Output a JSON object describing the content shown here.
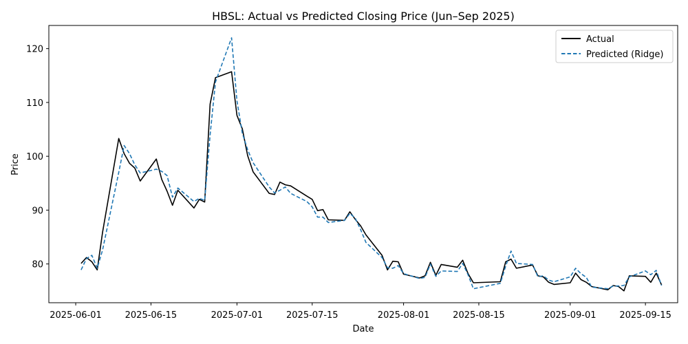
{
  "chart_data": {
    "type": "line",
    "title": "HBSL: Actual vs Predicted Closing Price (Jun–Sep 2025)",
    "xlabel": "Date",
    "ylabel": "Price",
    "xlim": [
      "2025-05-27",
      "2025-09-21"
    ],
    "ylim": [
      72.8,
      124.3
    ],
    "x_ticks": [
      "2025-06-01",
      "2025-06-15",
      "2025-07-01",
      "2025-07-15",
      "2025-08-01",
      "2025-08-15",
      "2025-09-01",
      "2025-09-15"
    ],
    "y_ticks": [
      80,
      90,
      100,
      110,
      120
    ],
    "grid": false,
    "legend_position": "top-right",
    "series": [
      {
        "name": "Actual",
        "color": "#000000",
        "style": "solid",
        "points": [
          [
            "2025-06-02",
            80.1
          ],
          [
            "2025-06-03",
            81.2
          ],
          [
            "2025-06-04",
            80.4
          ],
          [
            "2025-06-05",
            78.9
          ],
          [
            "2025-06-06",
            85.9
          ],
          [
            "2025-06-09",
            103.3
          ],
          [
            "2025-06-10",
            100.5
          ],
          [
            "2025-06-11",
            98.7
          ],
          [
            "2025-06-12",
            97.8
          ],
          [
            "2025-06-13",
            95.4
          ],
          [
            "2025-06-16",
            99.5
          ],
          [
            "2025-06-17",
            95.7
          ],
          [
            "2025-06-18",
            93.5
          ],
          [
            "2025-06-19",
            90.9
          ],
          [
            "2025-06-20",
            93.7
          ],
          [
            "2025-06-23",
            90.4
          ],
          [
            "2025-06-24",
            92.0
          ],
          [
            "2025-06-25",
            91.5
          ],
          [
            "2025-06-26",
            109.7
          ],
          [
            "2025-06-27",
            114.6
          ],
          [
            "2025-06-30",
            115.7
          ],
          [
            "2025-07-01",
            107.6
          ],
          [
            "2025-07-02",
            105.1
          ],
          [
            "2025-07-03",
            100.1
          ],
          [
            "2025-07-04",
            97.1
          ],
          [
            "2025-07-07",
            93.1
          ],
          [
            "2025-07-08",
            92.9
          ],
          [
            "2025-07-09",
            95.2
          ],
          [
            "2025-07-10",
            94.7
          ],
          [
            "2025-07-11",
            94.5
          ],
          [
            "2025-07-14",
            92.6
          ],
          [
            "2025-07-15",
            92.0
          ],
          [
            "2025-07-16",
            89.9
          ],
          [
            "2025-07-17",
            90.1
          ],
          [
            "2025-07-18",
            88.2
          ],
          [
            "2025-07-21",
            88.1
          ],
          [
            "2025-07-22",
            89.7
          ],
          [
            "2025-07-23",
            88.3
          ],
          [
            "2025-07-24",
            87.1
          ],
          [
            "2025-07-25",
            85.4
          ],
          [
            "2025-07-28",
            81.6
          ],
          [
            "2025-07-29",
            78.9
          ],
          [
            "2025-07-30",
            80.5
          ],
          [
            "2025-07-31",
            80.4
          ],
          [
            "2025-08-01",
            78.1
          ],
          [
            "2025-08-04",
            77.4
          ],
          [
            "2025-08-05",
            77.8
          ],
          [
            "2025-08-06",
            80.3
          ],
          [
            "2025-08-07",
            77.9
          ],
          [
            "2025-08-08",
            79.9
          ],
          [
            "2025-08-11",
            79.4
          ],
          [
            "2025-08-12",
            80.7
          ],
          [
            "2025-08-13",
            78.2
          ],
          [
            "2025-08-14",
            76.5
          ],
          [
            "2025-08-19",
            76.7
          ],
          [
            "2025-08-20",
            80.4
          ],
          [
            "2025-08-21",
            80.9
          ],
          [
            "2025-08-22",
            79.2
          ],
          [
            "2025-08-25",
            79.8
          ],
          [
            "2025-08-26",
            77.8
          ],
          [
            "2025-08-27",
            77.6
          ],
          [
            "2025-08-28",
            76.6
          ],
          [
            "2025-08-29",
            76.2
          ],
          [
            "2025-09-01",
            76.5
          ],
          [
            "2025-09-02",
            78.3
          ],
          [
            "2025-09-03",
            77.1
          ],
          [
            "2025-09-04",
            76.6
          ],
          [
            "2025-09-05",
            75.8
          ],
          [
            "2025-09-08",
            75.2
          ],
          [
            "2025-09-09",
            76.0
          ],
          [
            "2025-09-10",
            75.8
          ],
          [
            "2025-09-11",
            75.0
          ],
          [
            "2025-09-12",
            77.8
          ],
          [
            "2025-09-15",
            77.7
          ],
          [
            "2025-09-16",
            76.6
          ],
          [
            "2025-09-17",
            78.3
          ],
          [
            "2025-09-18",
            76.1
          ]
        ]
      },
      {
        "name": "Predicted (Ridge)",
        "color": "#1f77b4",
        "style": "dashed",
        "points": [
          [
            "2025-06-02",
            78.9
          ],
          [
            "2025-06-03",
            81.0
          ],
          [
            "2025-06-04",
            81.6
          ],
          [
            "2025-06-05",
            79.2
          ],
          [
            "2025-06-06",
            82.6
          ],
          [
            "2025-06-09",
            97.0
          ],
          [
            "2025-06-10",
            102.0
          ],
          [
            "2025-06-11",
            100.5
          ],
          [
            "2025-06-12",
            98.4
          ],
          [
            "2025-06-13",
            96.9
          ],
          [
            "2025-06-16",
            97.6
          ],
          [
            "2025-06-17",
            97.2
          ],
          [
            "2025-06-18",
            96.4
          ],
          [
            "2025-06-19",
            92.4
          ],
          [
            "2025-06-20",
            94.1
          ],
          [
            "2025-06-23",
            91.6
          ],
          [
            "2025-06-24",
            92.2
          ],
          [
            "2025-06-25",
            91.8
          ],
          [
            "2025-06-26",
            104.0
          ],
          [
            "2025-06-27",
            113.8
          ],
          [
            "2025-06-30",
            122.0
          ],
          [
            "2025-07-01",
            110.3
          ],
          [
            "2025-07-02",
            104.3
          ],
          [
            "2025-07-03",
            101.2
          ],
          [
            "2025-07-04",
            98.8
          ],
          [
            "2025-07-07",
            94.3
          ],
          [
            "2025-07-08",
            93.2
          ],
          [
            "2025-07-09",
            93.7
          ],
          [
            "2025-07-10",
            94.3
          ],
          [
            "2025-07-11",
            93.1
          ],
          [
            "2025-07-14",
            91.6
          ],
          [
            "2025-07-15",
            90.6
          ],
          [
            "2025-07-16",
            88.7
          ],
          [
            "2025-07-17",
            88.7
          ],
          [
            "2025-07-18",
            87.7
          ],
          [
            "2025-07-21",
            88.1
          ],
          [
            "2025-07-22",
            89.4
          ],
          [
            "2025-07-23",
            88.5
          ],
          [
            "2025-07-24",
            86.4
          ],
          [
            "2025-07-25",
            84.0
          ],
          [
            "2025-07-28",
            81.2
          ],
          [
            "2025-07-29",
            79.3
          ],
          [
            "2025-07-30",
            79.2
          ],
          [
            "2025-07-31",
            79.7
          ],
          [
            "2025-08-01",
            78.2
          ],
          [
            "2025-08-04",
            77.3
          ],
          [
            "2025-08-05",
            77.5
          ],
          [
            "2025-08-06",
            80.0
          ],
          [
            "2025-08-07",
            77.7
          ],
          [
            "2025-08-08",
            78.7
          ],
          [
            "2025-08-11",
            78.6
          ],
          [
            "2025-08-12",
            80.1
          ],
          [
            "2025-08-13",
            78.0
          ],
          [
            "2025-08-14",
            75.4
          ],
          [
            "2025-08-19",
            76.4
          ],
          [
            "2025-08-20",
            79.6
          ],
          [
            "2025-08-21",
            82.4
          ],
          [
            "2025-08-22",
            80.1
          ],
          [
            "2025-08-25",
            79.9
          ],
          [
            "2025-08-26",
            77.6
          ],
          [
            "2025-08-27",
            77.8
          ],
          [
            "2025-08-28",
            77.0
          ],
          [
            "2025-08-29",
            76.7
          ],
          [
            "2025-09-01",
            77.6
          ],
          [
            "2025-09-02",
            79.2
          ],
          [
            "2025-09-03",
            78.2
          ],
          [
            "2025-09-04",
            77.5
          ],
          [
            "2025-09-05",
            75.7
          ],
          [
            "2025-09-08",
            75.4
          ],
          [
            "2025-09-09",
            75.9
          ],
          [
            "2025-09-10",
            75.9
          ],
          [
            "2025-09-11",
            76.0
          ],
          [
            "2025-09-12",
            77.6
          ],
          [
            "2025-09-15",
            78.7
          ],
          [
            "2025-09-16",
            78.0
          ],
          [
            "2025-09-17",
            78.8
          ],
          [
            "2025-09-18",
            76.0
          ]
        ]
      }
    ]
  }
}
